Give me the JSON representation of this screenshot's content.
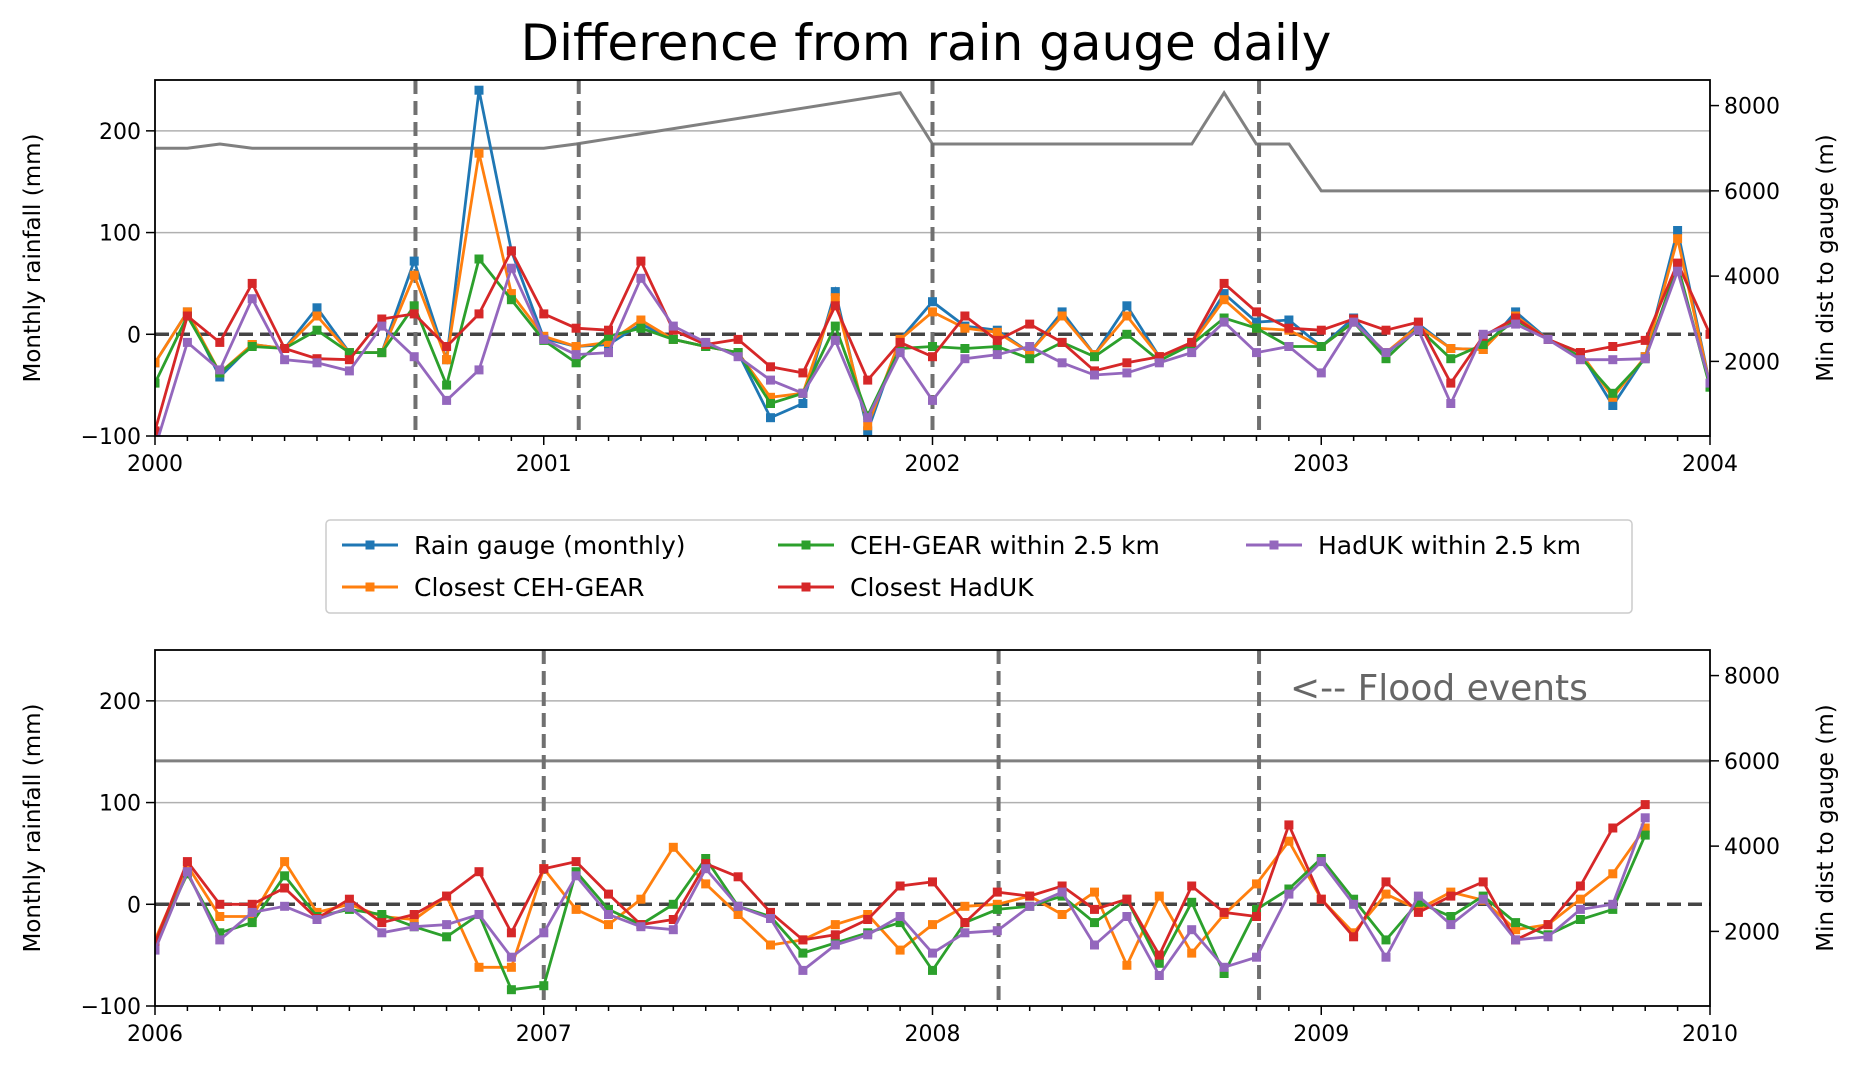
{
  "title": "Difference from rain gauge daily",
  "annotation": "<-- Flood events",
  "colors": {
    "rain_gauge": "#1f77b4",
    "closest_ceh": "#ff7f0e",
    "ceh_within": "#2ca02c",
    "closest_haduk": "#d62728",
    "haduk_within": "#9467bd",
    "min_dist": "#808080",
    "grid": "#b0b0b0",
    "flood": "#707070"
  },
  "legend": [
    {
      "key": "rain_gauge",
      "label": "Rain gauge (monthly)"
    },
    {
      "key": "closest_ceh",
      "label": "Closest CEH-GEAR"
    },
    {
      "key": "ceh_within",
      "label": "CEH-GEAR within 2.5 km"
    },
    {
      "key": "closest_haduk",
      "label": "Closest HadUK"
    },
    {
      "key": "haduk_within",
      "label": "HadUK within 2.5 km"
    }
  ],
  "chart_data": [
    {
      "type": "line",
      "ylabel": "Monthly rainfall (mm)",
      "y2label": "Min dist to gauge (m)",
      "xlim": [
        2000,
        2004
      ],
      "ylim": [
        -100,
        250
      ],
      "y2lim": [
        250,
        8600
      ],
      "xticks": [
        2000,
        2001,
        2002,
        2003,
        2004
      ],
      "yticks": [
        -100,
        0,
        100,
        200
      ],
      "y2ticks": [
        2000,
        4000,
        6000,
        8000
      ],
      "grid_y": [
        100,
        200
      ],
      "flood_events": [
        2000.67,
        2001.09,
        2002.0,
        2002.84
      ],
      "series": [
        {
          "key": "rain_gauge",
          "values": [
            -28,
            22,
            -42,
            -10,
            -14,
            26,
            -18,
            -18,
            72,
            -25,
            240,
            82,
            -4,
            -12,
            -10,
            10,
            -5,
            -12,
            -18,
            -82,
            -68,
            42,
            -95,
            -5,
            32,
            8,
            4,
            -18,
            22,
            -20,
            28,
            -22,
            -10,
            40,
            12,
            14,
            -12,
            16,
            -20,
            10,
            -14,
            -15,
            22,
            -5,
            -18,
            -70,
            -22,
            102,
            -50
          ]
        },
        {
          "key": "closest_ceh",
          "values": [
            -28,
            22,
            -38,
            -10,
            -14,
            18,
            -18,
            -18,
            58,
            -25,
            178,
            40,
            -2,
            -12,
            -8,
            14,
            -5,
            -12,
            -18,
            -62,
            -58,
            36,
            -90,
            -5,
            22,
            6,
            2,
            -18,
            18,
            -20,
            18,
            -22,
            -10,
            34,
            6,
            4,
            -12,
            12,
            -18,
            8,
            -14,
            -15,
            18,
            -5,
            -18,
            -62,
            -22,
            94,
            -50
          ]
        },
        {
          "key": "ceh_within",
          "values": [
            -48,
            18,
            -38,
            -12,
            -14,
            4,
            -18,
            -18,
            28,
            -50,
            74,
            34,
            -6,
            -28,
            -2,
            6,
            -5,
            -12,
            -18,
            -68,
            -58,
            8,
            -80,
            -14,
            -12,
            -14,
            -12,
            -24,
            -8,
            -22,
            0,
            -26,
            -10,
            16,
            6,
            -12,
            -12,
            12,
            -24,
            6,
            -24,
            -10,
            14,
            -5,
            -22,
            -58,
            -24,
            68,
            -52
          ]
        },
        {
          "key": "closest_haduk",
          "values": [
            -95,
            18,
            -8,
            50,
            -14,
            -24,
            -25,
            15,
            20,
            -12,
            20,
            82,
            20,
            6,
            4,
            72,
            4,
            -10,
            -5,
            -32,
            -38,
            28,
            -45,
            -8,
            -22,
            18,
            -6,
            10,
            -8,
            -36,
            -28,
            -22,
            -8,
            50,
            22,
            6,
            4,
            15,
            4,
            12,
            -48,
            -2,
            16,
            -5,
            -18,
            -12,
            -6,
            70,
            0
          ]
        },
        {
          "key": "haduk_within",
          "values": [
            -112,
            -8,
            -35,
            35,
            -25,
            -28,
            -36,
            8,
            -22,
            -65,
            -35,
            65,
            -5,
            -20,
            -18,
            55,
            8,
            -8,
            -22,
            -45,
            -58,
            -6,
            -82,
            -18,
            -65,
            -24,
            -20,
            -12,
            -28,
            -40,
            -38,
            -28,
            -18,
            12,
            -18,
            -12,
            -38,
            12,
            -18,
            4,
            -68,
            0,
            10,
            -5,
            -25,
            -25,
            -24,
            62,
            -48
          ]
        },
        {
          "key": "min_dist",
          "axis": "y2",
          "x": [
            2000.0,
            2000.083,
            2000.167,
            2000.25,
            2000.333,
            2001.0,
            2001.083,
            2001.917,
            2002.0,
            2002.667,
            2002.75,
            2002.833,
            2002.917,
            2003.0,
            2004.0
          ],
          "values": [
            7000,
            7000,
            7100,
            7000,
            7000,
            7000,
            7100,
            8300,
            7100,
            7100,
            8300,
            7100,
            7100,
            6000,
            6000
          ]
        }
      ]
    },
    {
      "type": "line",
      "ylabel": "Monthly rainfall (mm)",
      "y2label": "Min dist to gauge (m)",
      "xlim": [
        2006,
        2010
      ],
      "ylim": [
        -100,
        250
      ],
      "y2lim": [
        250,
        8600
      ],
      "xticks": [
        2006,
        2007,
        2008,
        2009,
        2010
      ],
      "yticks": [
        -100,
        0,
        100,
        200
      ],
      "y2ticks": [
        2000,
        4000,
        6000,
        8000
      ],
      "grid_y": [
        100,
        200
      ],
      "flood_events": [
        2007.0,
        2008.17,
        2008.84
      ],
      "series": [
        {
          "key": "closest_ceh",
          "values": [
            -35,
            38,
            -12,
            -12,
            42,
            -8,
            0,
            -12,
            -15,
            8,
            -62,
            -62,
            35,
            -5,
            -20,
            5,
            56,
            20,
            -10,
            -40,
            -35,
            -20,
            -10,
            -45,
            -20,
            -2,
            0,
            8,
            -10,
            12,
            -60,
            8,
            -48,
            -10,
            20,
            62,
            5,
            -28,
            10,
            -5,
            12,
            4,
            -25,
            -20,
            5,
            30,
            75
          ]
        },
        {
          "key": "ceh_within",
          "values": [
            -38,
            30,
            -28,
            -18,
            28,
            -12,
            -5,
            -10,
            -22,
            -32,
            -10,
            -84,
            -80,
            32,
            -5,
            -20,
            0,
            45,
            -2,
            -12,
            -48,
            -38,
            -28,
            -18,
            -65,
            -18,
            -5,
            -2,
            8,
            -18,
            5,
            -58,
            2,
            -68,
            -5,
            15,
            45,
            5,
            -35,
            2,
            -12,
            8,
            -18,
            -30,
            -15,
            -5,
            68
          ]
        },
        {
          "key": "closest_haduk",
          "values": [
            -38,
            42,
            0,
            0,
            16,
            -14,
            5,
            -18,
            -10,
            8,
            32,
            -28,
            35,
            42,
            10,
            -20,
            -15,
            40,
            27,
            -8,
            -35,
            -30,
            -15,
            18,
            22,
            -18,
            12,
            8,
            18,
            -5,
            5,
            -50,
            18,
            -8,
            -12,
            78,
            5,
            -32,
            22,
            -8,
            8,
            22,
            -35,
            -20,
            18,
            75,
            98
          ]
        },
        {
          "key": "haduk_within",
          "values": [
            -45,
            32,
            -35,
            -8,
            -2,
            -15,
            -3,
            -28,
            -22,
            -20,
            -10,
            -52,
            -28,
            28,
            -10,
            -22,
            -25,
            35,
            -2,
            -14,
            -65,
            -40,
            -30,
            -12,
            -48,
            -28,
            -26,
            -2,
            12,
            -40,
            -12,
            -70,
            -25,
            -62,
            -52,
            10,
            42,
            0,
            -52,
            8,
            -20,
            5,
            -35,
            -32,
            -5,
            0,
            85
          ]
        },
        {
          "key": "min_dist",
          "axis": "y2",
          "x": [
            2006,
            2010
          ],
          "values": [
            6000,
            6000
          ]
        }
      ]
    }
  ]
}
